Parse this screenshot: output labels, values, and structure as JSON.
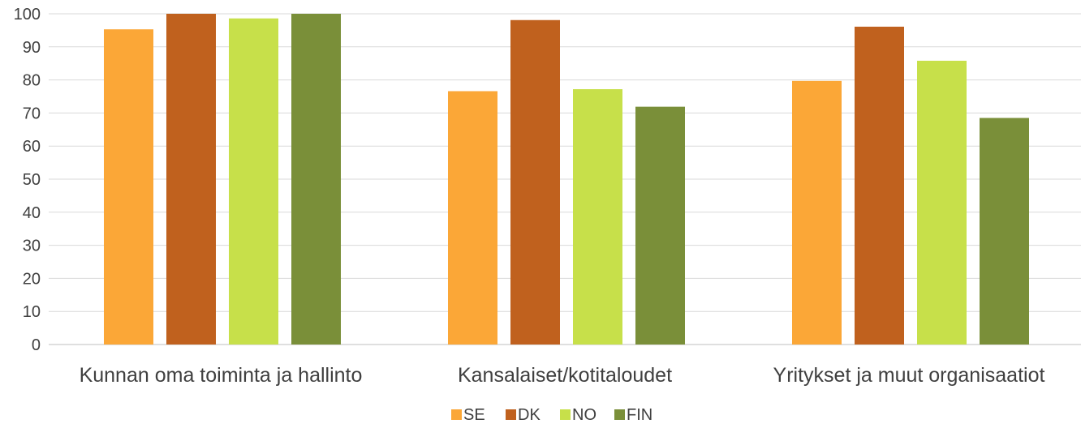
{
  "chart_data": {
    "type": "bar",
    "title": "",
    "xlabel": "",
    "ylabel": "",
    "categories": [
      "Kunnan oma toiminta ja hallinto",
      "Kansalaiset/kotitaloudet",
      "Yritykset ja muut organisaatiot"
    ],
    "series": [
      {
        "name": "SE",
        "color": "#FBA737",
        "values": [
          95.3,
          76.6,
          79.7
        ]
      },
      {
        "name": "DK",
        "color": "#C0611E",
        "values": [
          100,
          98.1,
          96.1
        ]
      },
      {
        "name": "NO",
        "color": "#C7E04A",
        "values": [
          98.6,
          77.2,
          85.8
        ]
      },
      {
        "name": "FIN",
        "color": "#7A8F39",
        "values": [
          100,
          71.9,
          68.5
        ]
      }
    ],
    "ylim": [
      0,
      100
    ],
    "yticks": [
      0,
      10,
      20,
      30,
      40,
      50,
      60,
      70,
      80,
      90,
      100
    ],
    "grid": true,
    "legend": "bottom-center"
  }
}
